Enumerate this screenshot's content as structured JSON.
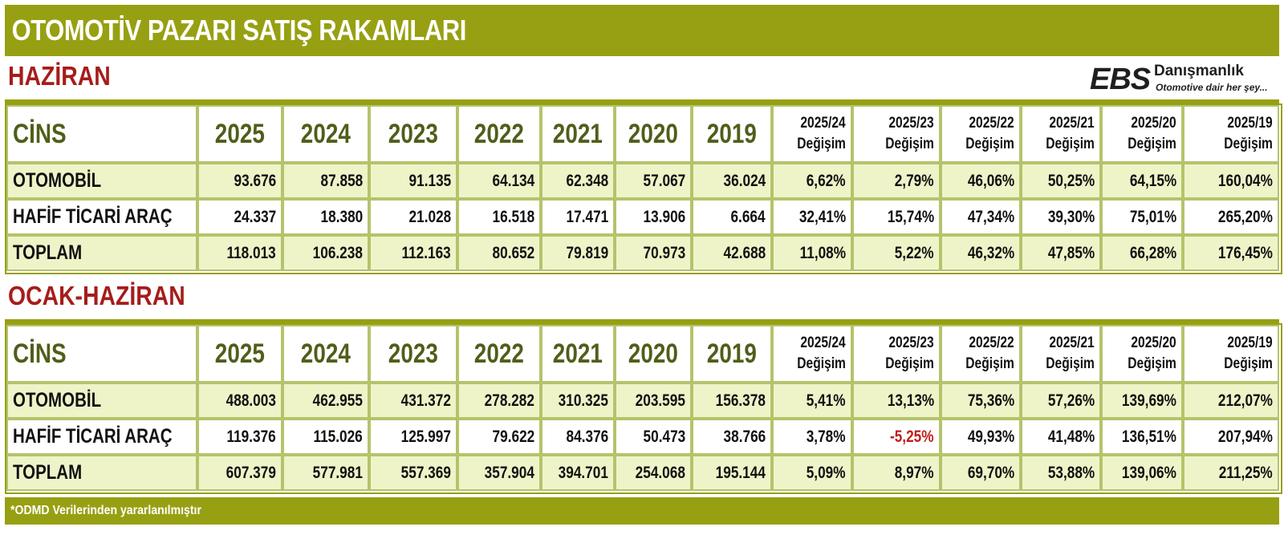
{
  "title": "OTOMOTİV PAZARI SATIŞ RAKAMLARI",
  "logo": {
    "brand": "EBS",
    "name": "Danışmanlık",
    "tagline": "Otomotive dair her şey..."
  },
  "colors": {
    "banner": "#97a012",
    "section_title": "#a51d1a",
    "header_text": "#4f5e1a",
    "light_cell": "#eef4c8",
    "negative": "#c0201c"
  },
  "columns": {
    "category": "CİNS",
    "years": [
      "2025",
      "2024",
      "2023",
      "2022",
      "2021",
      "2020",
      "2019"
    ],
    "changes": [
      {
        "period": "2025/24",
        "label": "Değişim"
      },
      {
        "period": "2025/23",
        "label": "Değişim"
      },
      {
        "period": "2025/22",
        "label": "Değişim"
      },
      {
        "period": "2025/21",
        "label": "Değişim"
      },
      {
        "period": "2025/20",
        "label": "Değişim"
      },
      {
        "period": "2025/19",
        "label": "Değişim"
      }
    ]
  },
  "sections": [
    {
      "title": "HAZİRAN",
      "rows": [
        {
          "label": "OTOMOBİL",
          "values": [
            "93.676",
            "87.858",
            "91.135",
            "64.134",
            "62.348",
            "57.067",
            "36.024"
          ],
          "changes": [
            "6,62%",
            "2,79%",
            "46,06%",
            "50,25%",
            "64,15%",
            "160,04%"
          ]
        },
        {
          "label": "HAFİF TİCARİ ARAÇ",
          "values": [
            "24.337",
            "18.380",
            "21.028",
            "16.518",
            "17.471",
            "13.906",
            "6.664"
          ],
          "changes": [
            "32,41%",
            "15,74%",
            "47,34%",
            "39,30%",
            "75,01%",
            "265,20%"
          ]
        },
        {
          "label": "TOPLAM",
          "values": [
            "118.013",
            "106.238",
            "112.163",
            "80.652",
            "79.819",
            "70.973",
            "42.688"
          ],
          "changes": [
            "11,08%",
            "5,22%",
            "46,32%",
            "47,85%",
            "66,28%",
            "176,45%"
          ]
        }
      ]
    },
    {
      "title": "OCAK-HAZİRAN",
      "rows": [
        {
          "label": "OTOMOBİL",
          "values": [
            "488.003",
            "462.955",
            "431.372",
            "278.282",
            "310.325",
            "203.595",
            "156.378"
          ],
          "changes": [
            "5,41%",
            "13,13%",
            "75,36%",
            "57,26%",
            "139,69%",
            "212,07%"
          ]
        },
        {
          "label": "HAFİF TİCARİ ARAÇ",
          "values": [
            "119.376",
            "115.026",
            "125.997",
            "79.622",
            "84.376",
            "50.473",
            "38.766"
          ],
          "changes": [
            "3,78%",
            "-5,25%",
            "49,93%",
            "41,48%",
            "136,51%",
            "207,94%"
          ]
        },
        {
          "label": "TOPLAM",
          "values": [
            "607.379",
            "577.981",
            "557.369",
            "357.904",
            "394.701",
            "254.068",
            "195.144"
          ],
          "changes": [
            "5,09%",
            "8,97%",
            "69,70%",
            "53,88%",
            "139,06%",
            "211,25%"
          ]
        }
      ]
    }
  ],
  "footer": "*ODMD Verilerinden yararlanılmıştır"
}
